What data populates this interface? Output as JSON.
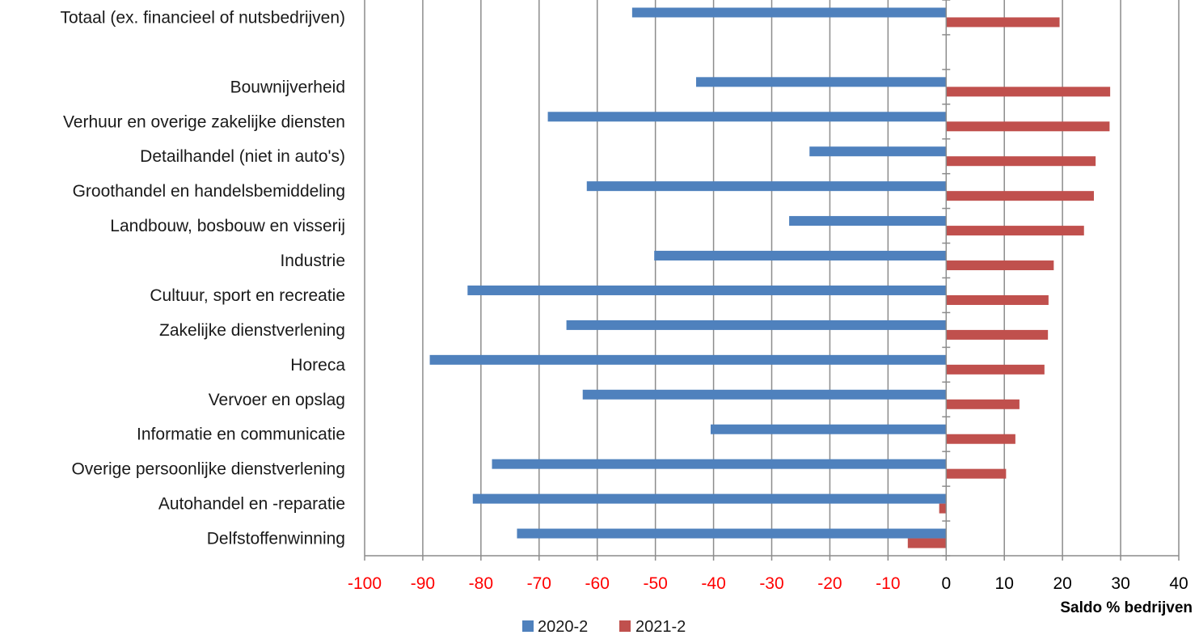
{
  "chart_data": {
    "type": "bar",
    "orientation": "horizontal",
    "categories": [
      "Totaal (ex. financieel of nutsbedrijven)",
      "",
      "Bouwnijverheid",
      "Verhuur en overige zakelijke diensten",
      "Detailhandel (niet in auto's)",
      "Groothandel en handelsbemiddeling",
      "Landbouw, bosbouw en visserij",
      "Industrie",
      "Cultuur, sport en recreatie",
      "Zakelijke dienstverlening",
      "Horeca",
      "Vervoer en opslag",
      "Informatie en communicatie",
      "Overige persoonlijke dienstverlening",
      "Autohandel en -reparatie",
      "Delfstoffenwinning"
    ],
    "series": [
      {
        "name": "2020-2",
        "color": "#4f81bd",
        "values": [
          -54,
          null,
          -43,
          -68.5,
          -23.5,
          -61.8,
          -27,
          -50.2,
          -82.3,
          -65.3,
          -88.8,
          -62.5,
          -40.5,
          -78.1,
          -81.4,
          -73.8
        ]
      },
      {
        "name": "2021-2",
        "color": "#c0504d",
        "values": [
          19.5,
          null,
          28.2,
          28.1,
          25.7,
          25.4,
          23.7,
          18.5,
          17.6,
          17.5,
          16.9,
          12.6,
          11.9,
          10.3,
          -1.2,
          -6.6
        ]
      }
    ],
    "xlim": [
      -100,
      40
    ],
    "xticks": [
      -100,
      -90,
      -80,
      -70,
      -60,
      -50,
      -40,
      -30,
      -20,
      -10,
      0,
      10,
      20,
      30,
      40
    ],
    "xtick_labels": [
      "-100",
      "-90",
      "-80",
      "-70",
      "-60",
      "-50",
      "-40",
      "-30",
      "-20",
      "-10",
      "0",
      "10",
      "20",
      "30",
      "40"
    ],
    "negative_tick_color": "#ff0000",
    "positive_tick_color": "#000000",
    "xlabel": "Saldo % bedrijven",
    "title": "",
    "grid": "vertical",
    "legend_position": "bottom"
  }
}
